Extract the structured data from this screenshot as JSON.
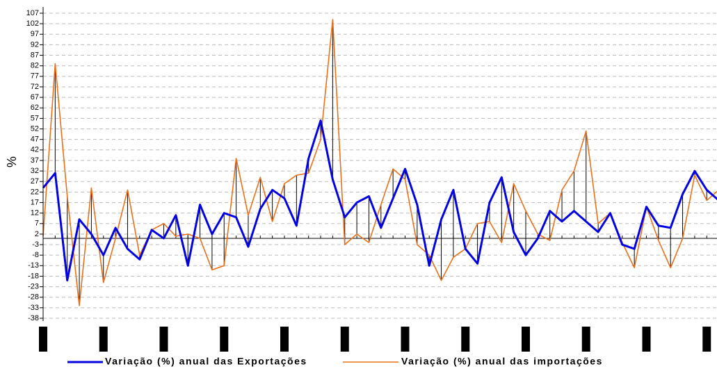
{
  "chart_data": {
    "type": "line",
    "y_label": "%",
    "categories": [
      null,
      null,
      null,
      null,
      null,
      null,
      null,
      null,
      null,
      null,
      null,
      null,
      null,
      null,
      null,
      null,
      null,
      null,
      null,
      null,
      null,
      null,
      null,
      null,
      null,
      null,
      null,
      null,
      null,
      null,
      null,
      null,
      null,
      null,
      null,
      null,
      null,
      null,
      null,
      null,
      null,
      null,
      null,
      null,
      null,
      null,
      null,
      null,
      null,
      null,
      null,
      null,
      null,
      null,
      null,
      null,
      null
    ],
    "series": [
      {
        "name": "Variação (%) anual das Exportações",
        "color": "#0000e0",
        "values": [
          24,
          31,
          -20,
          9,
          2,
          -8,
          5,
          -5,
          -10,
          4,
          0,
          11,
          -13,
          16,
          2,
          12,
          10,
          -4,
          14,
          23,
          19,
          6,
          38,
          56,
          28,
          10,
          17,
          20,
          5,
          19,
          33,
          16,
          -13,
          9,
          23,
          -5,
          -12,
          17,
          29,
          3,
          -8,
          0,
          13,
          8,
          13,
          8,
          3,
          12,
          -3,
          -5,
          15,
          6,
          5,
          21,
          32,
          23,
          18
        ]
      },
      {
        "name": "Variação (%) anual das importações",
        "color": "#e8701a",
        "values": [
          1,
          83,
          20,
          -32,
          24,
          -21,
          0,
          23,
          -8,
          4,
          7,
          1,
          2,
          0,
          -15,
          -13,
          38,
          11,
          29,
          8,
          26,
          30,
          31,
          47,
          104,
          -3,
          2,
          -2,
          16,
          33,
          28,
          -3,
          -8,
          -20,
          -9,
          -5,
          7,
          8,
          -2,
          26,
          13,
          2,
          -1,
          23,
          32,
          51,
          7,
          12,
          -2,
          -14,
          15,
          -1,
          -14,
          0,
          30,
          18,
          23
        ]
      }
    ],
    "ylim": [
      -41,
      109
    ],
    "yticks": [
      -38,
      -33,
      -28,
      -23,
      -18,
      -13,
      -8,
      -3,
      2,
      7,
      12,
      17,
      22,
      27,
      32,
      37,
      42,
      47,
      52,
      57,
      62,
      67,
      72,
      77,
      82,
      87,
      92,
      97,
      102,
      107
    ],
    "grid": true
  }
}
